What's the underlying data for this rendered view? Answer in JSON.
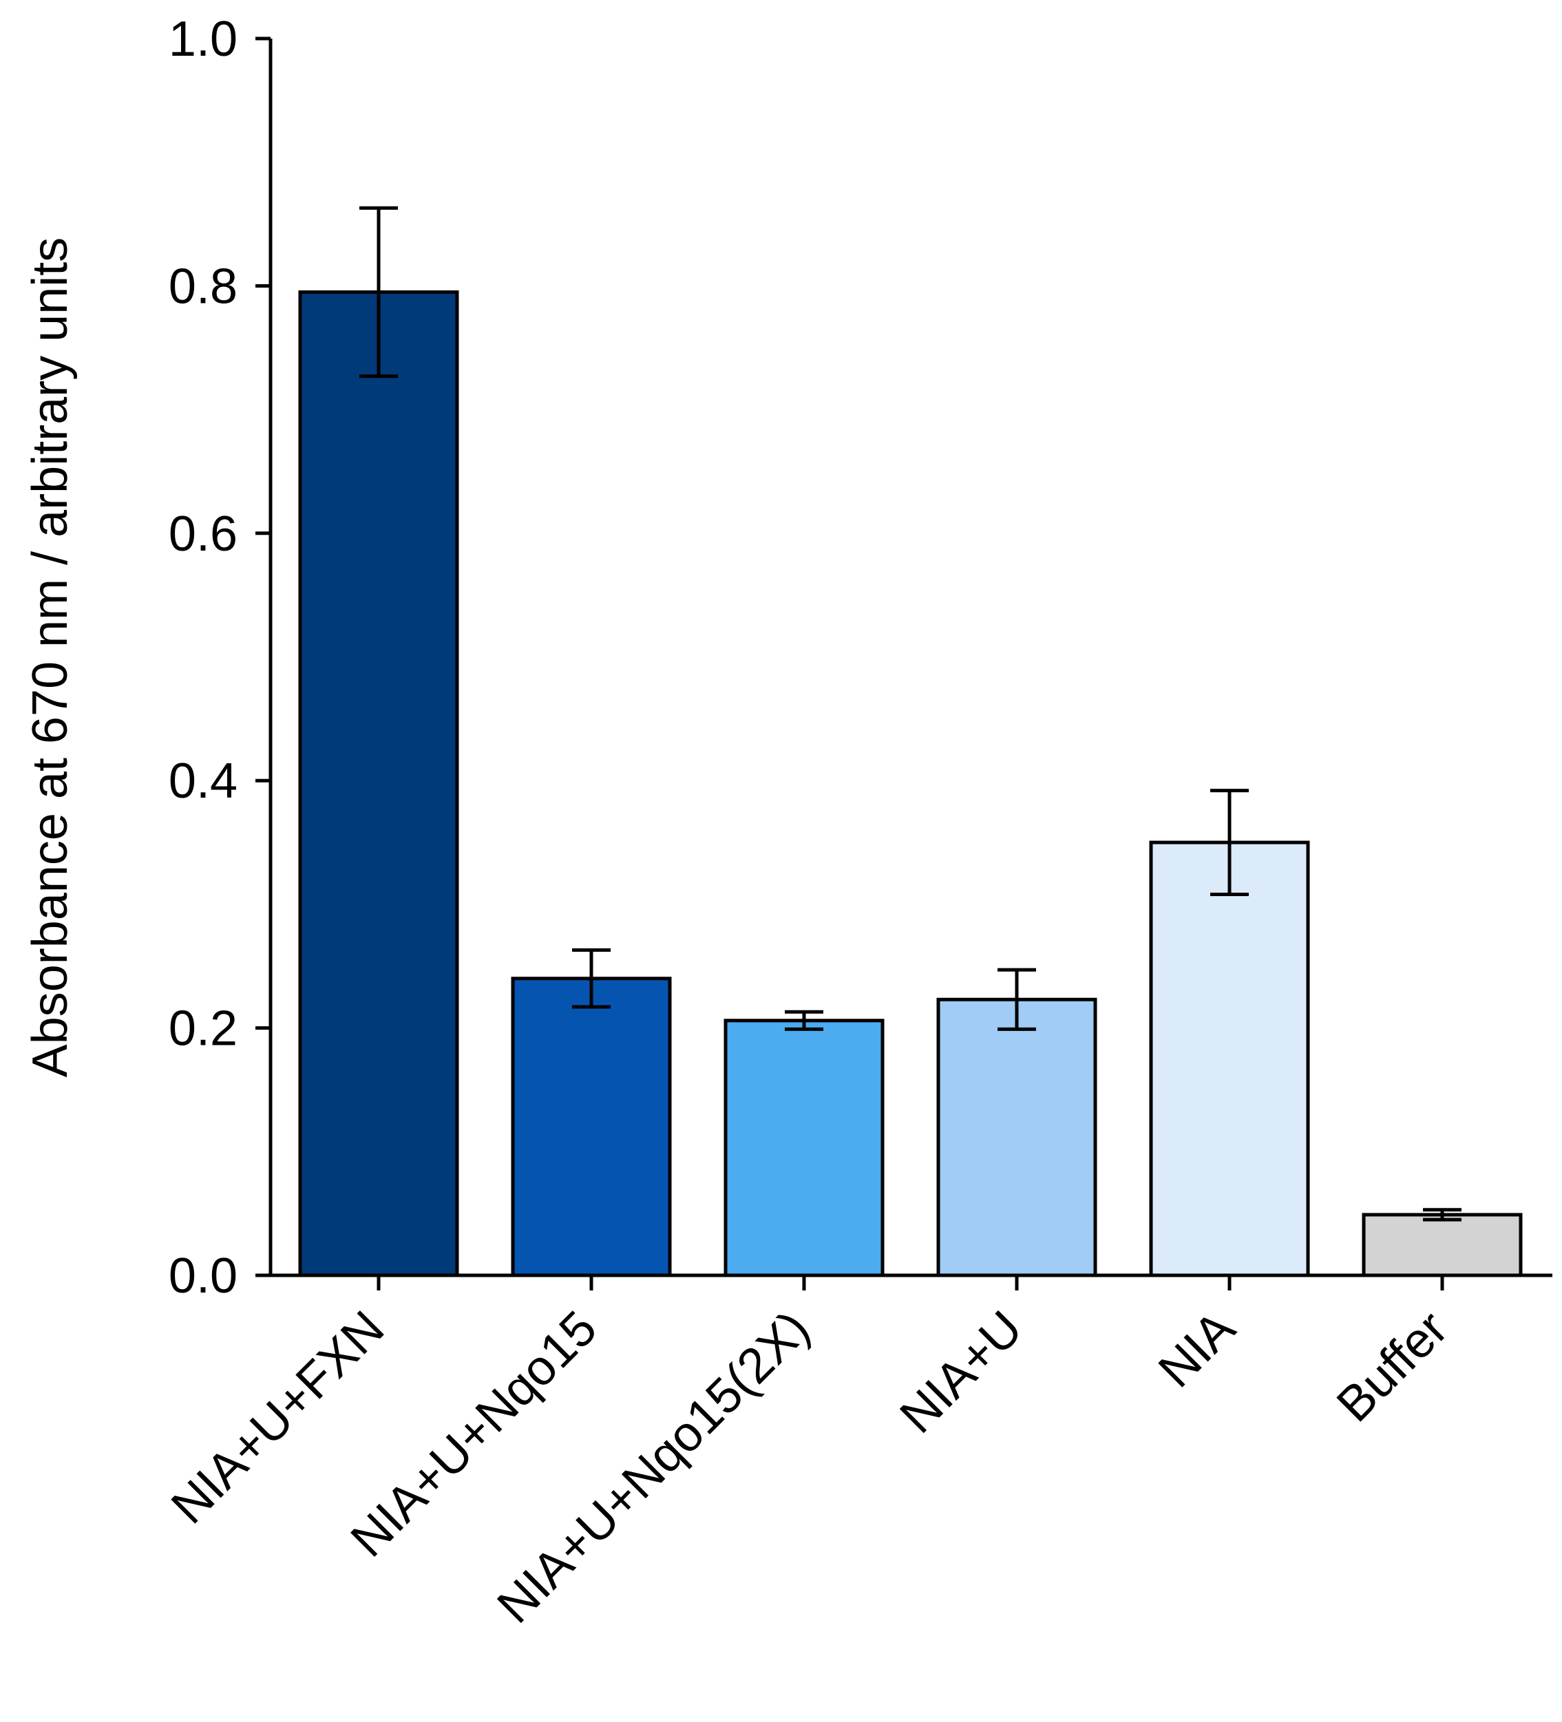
{
  "chart_data": {
    "type": "bar",
    "title": "",
    "xlabel": "",
    "ylabel": "Absorbance at 670 nm / arbitrary units",
    "ylim": [
      0.0,
      1.0
    ],
    "yticks": [
      "0.0",
      "0.2",
      "0.4",
      "0.6",
      "0.8",
      "1.0"
    ],
    "ytick_values": [
      0.0,
      0.2,
      0.4,
      0.6,
      0.8,
      1.0
    ],
    "grid": false,
    "categories": [
      "NIA+U+FXN",
      "NIA+U+Nqo15",
      "NIA+U+Nqo15(2X)",
      "NIA+U",
      "NIA",
      "Buffer"
    ],
    "values": [
      0.795,
      0.24,
      0.206,
      0.223,
      0.35,
      0.049
    ],
    "errors": [
      0.068,
      0.023,
      0.007,
      0.024,
      0.042,
      0.004
    ],
    "colors": [
      "#003A78",
      "#0555B0",
      "#4DABF0",
      "#A0CCF5",
      "#DCEBFA",
      "#D3D3D3"
    ]
  }
}
